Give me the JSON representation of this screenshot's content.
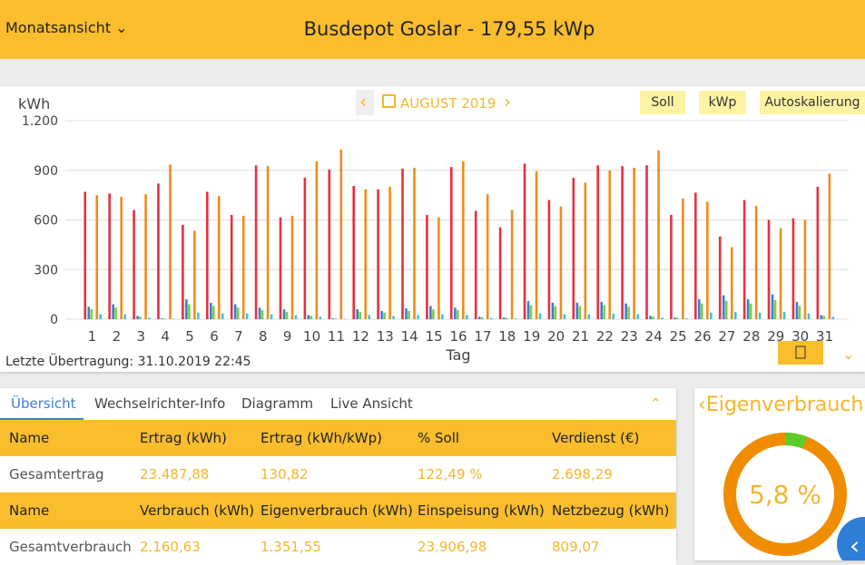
{
  "header": {
    "view": "Monatsansicht",
    "title": "Busdepot Goslar - 179,55 kWp"
  },
  "chart_data": {
    "type": "bar",
    "period": "AUGUST 2019",
    "ylabel": "kWh",
    "xlabel": "Tag",
    "categories": [
      "1",
      "2",
      "3",
      "4",
      "5",
      "6",
      "7",
      "8",
      "9",
      "10",
      "11",
      "12",
      "13",
      "14",
      "15",
      "16",
      "17",
      "18",
      "19",
      "20",
      "21",
      "22",
      "23",
      "24",
      "25",
      "26",
      "27",
      "28",
      "29",
      "30",
      "31"
    ],
    "ylim": [
      0,
      1200
    ],
    "yticks": [
      0,
      300,
      600,
      900,
      {
        "value": 1200,
        "label": "1.200"
      }
    ],
    "grid": true,
    "series": [
      {
        "color": "#e8303f",
        "values": [
          770,
          760,
          660,
          820,
          570,
          770,
          630,
          930,
          615,
          855,
          905,
          805,
          785,
          910,
          630,
          920,
          655,
          555,
          940,
          720,
          855,
          930,
          925,
          930,
          630,
          765,
          500,
          720,
          600,
          610,
          800
        ]
      },
      {
        "color": "#3a7fd5",
        "values": [
          75,
          90,
          20,
          5,
          120,
          100,
          90,
          70,
          60,
          25,
          5,
          60,
          50,
          65,
          80,
          70,
          15,
          10,
          110,
          100,
          100,
          105,
          95,
          20,
          10,
          120,
          145,
          120,
          150,
          105,
          25
        ]
      },
      {
        "color": "#7ccf3c",
        "values": [
          60,
          70,
          15,
          4,
          90,
          80,
          70,
          55,
          45,
          20,
          4,
          45,
          40,
          50,
          60,
          55,
          12,
          8,
          85,
          80,
          80,
          85,
          75,
          15,
          8,
          95,
          110,
          95,
          115,
          80,
          20
        ]
      },
      {
        "color": "#f08c1c",
        "values": [
          750,
          740,
          755,
          935,
          535,
          745,
          625,
          925,
          625,
          955,
          1025,
          785,
          800,
          915,
          615,
          955,
          755,
          660,
          895,
          680,
          825,
          900,
          915,
          1020,
          730,
          710,
          435,
          685,
          550,
          600,
          880
        ]
      },
      {
        "color": "#3ec5d8",
        "values": [
          30,
          30,
          10,
          3,
          40,
          35,
          35,
          30,
          25,
          15,
          3,
          25,
          20,
          25,
          30,
          25,
          8,
          5,
          35,
          30,
          30,
          35,
          30,
          10,
          5,
          40,
          45,
          40,
          45,
          35,
          15
        ]
      }
    ]
  },
  "buttons": [
    "Soll",
    "kWp",
    "Autoskalierung"
  ],
  "last_transfer": "Letzte Übertragung: 31.10.2019 22:45",
  "tabs": [
    "Übersicht",
    "Wechselrichter-Info",
    "Diagramm",
    "Live Ansicht"
  ],
  "table": {
    "rows": [
      [
        "Name",
        "Ertrag (kWh)",
        "Ertrag (kWh/kWp)",
        "% Soll",
        "Verdienst (€)"
      ],
      [
        "Gesamtertrag",
        "23.487,88",
        "130,82",
        "122,49 %",
        "2.698,29"
      ],
      [
        "Name",
        "Verbrauch (kWh)",
        "Eigenverbrauch (kWh)",
        "Einspeisung (kWh)",
        "Netzbezug (kWh)"
      ],
      [
        "Gesamtverbrauch",
        "2.160,63",
        "1.351,55",
        "23.906,98",
        "809,07"
      ]
    ]
  },
  "eigen": {
    "title": "Eigenverbrauch",
    "value": 5.8,
    "value_label": "5,8 %"
  }
}
